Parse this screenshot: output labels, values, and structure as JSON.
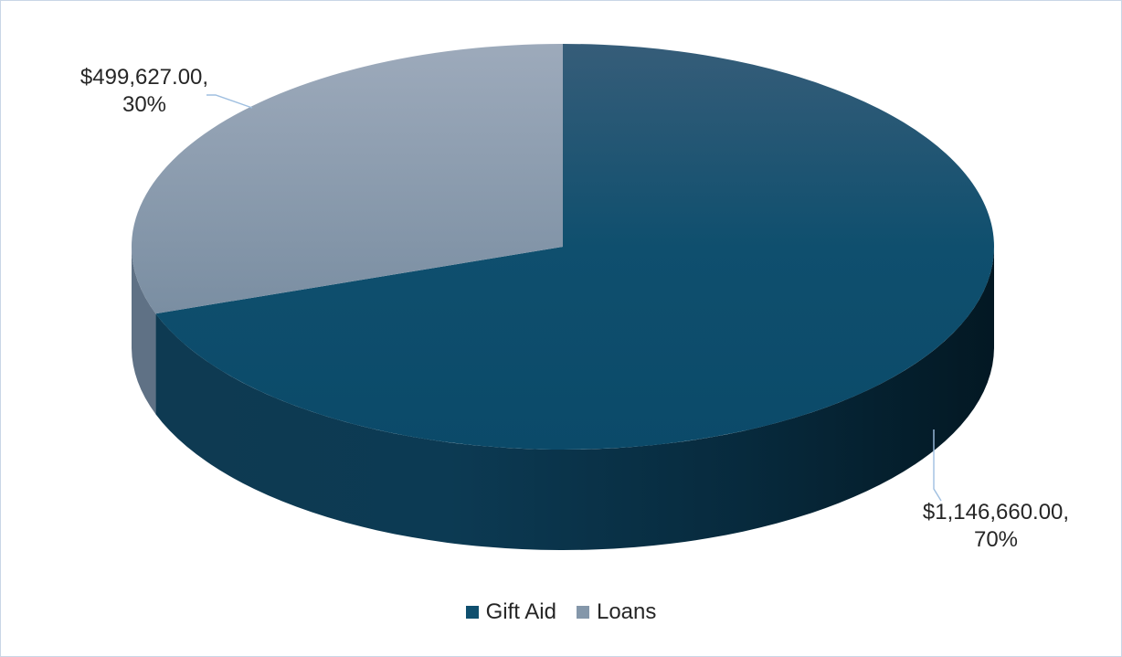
{
  "chart_data": {
    "type": "pie",
    "title": "",
    "categories": [
      "Gift Aid",
      "Loans"
    ],
    "values": [
      1146660,
      499627
    ],
    "percent": [
      70,
      30
    ],
    "data_labels": [
      "$1,146,660.00,\n70%",
      "$499,627.00,\n30%"
    ],
    "legend_position": "bottom",
    "colors": {
      "Gift Aid": "#0f4f6e",
      "Loans": "#8497aa"
    },
    "style": "3d"
  },
  "legend": {
    "items": [
      {
        "label": "Gift Aid",
        "color": "#0f4f6e"
      },
      {
        "label": "Loans",
        "color": "#8497aa"
      }
    ]
  }
}
